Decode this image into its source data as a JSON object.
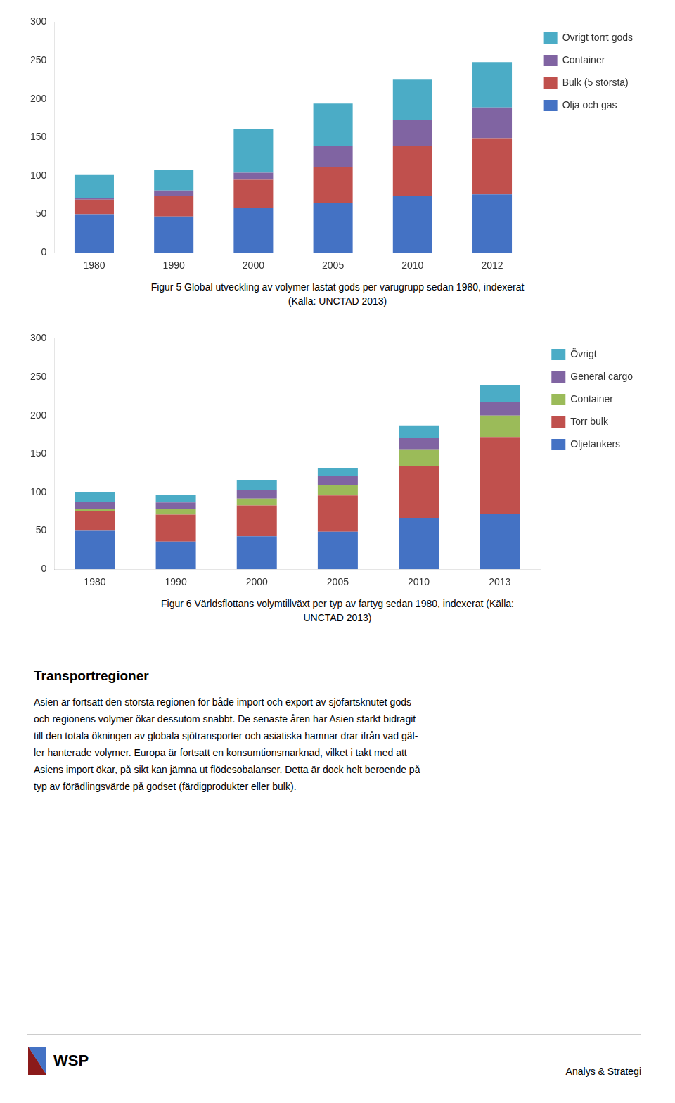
{
  "chart_data": [
    {
      "type": "bar",
      "stacked": true,
      "grid": false,
      "legend": "right",
      "categories": [
        "1980",
        "1990",
        "2000",
        "2005",
        "2010",
        "2012"
      ],
      "series": [
        {
          "name": "Olja och gas",
          "color": "#4472C4",
          "values": [
            50,
            47,
            58,
            65,
            74,
            76
          ]
        },
        {
          "name": "Bulk (5 största)",
          "color": "#C0504D",
          "values": [
            19,
            27,
            37,
            46,
            65,
            73
          ]
        },
        {
          "name": "Container",
          "color": "#8064A2",
          "values": [
            2,
            7,
            9,
            28,
            34,
            40
          ]
        },
        {
          "name": "Övrigt torrt gods",
          "color": "#4BACC6",
          "values": [
            30,
            27,
            57,
            55,
            52,
            59
          ]
        }
      ],
      "ylim": [
        0,
        300
      ],
      "yticks": [
        0,
        50,
        100,
        150,
        200,
        250,
        300
      ],
      "annotations": [
        "Figur 5 Global utveckling av volymer lastat gods per varugrupp sedan 1980, indexerat",
        "(Källa: UNCTAD 2013)"
      ]
    },
    {
      "type": "bar",
      "stacked": true,
      "grid": false,
      "legend": "right",
      "categories": [
        "1980",
        "1990",
        "2000",
        "2005",
        "2010",
        "2013"
      ],
      "series": [
        {
          "name": "Oljetankers",
          "color": "#4472C4",
          "values": [
            50,
            36,
            43,
            49,
            66,
            72
          ]
        },
        {
          "name": "Torr bulk",
          "color": "#C0504D",
          "values": [
            26,
            35,
            40,
            47,
            68,
            100
          ]
        },
        {
          "name": "Container",
          "color": "#9BBB59",
          "values": [
            3,
            7,
            9,
            13,
            22,
            28
          ]
        },
        {
          "name": "General cargo",
          "color": "#8064A2",
          "values": [
            9,
            9,
            11,
            12,
            15,
            18
          ]
        },
        {
          "name": "Övrigt",
          "color": "#4BACC6",
          "values": [
            12,
            10,
            13,
            10,
            16,
            21
          ]
        }
      ],
      "ylim": [
        0,
        300
      ],
      "yticks": [
        0,
        50,
        100,
        150,
        200,
        250,
        300
      ],
      "annotations": [
        "Figur 6 Världsflottans volymtillväxt per typ av fartyg sedan 1980, indexerat (Källa:",
        "UNCTAD 2013)"
      ]
    }
  ],
  "text_block": {
    "heading": "Transportregioner",
    "body_lines": [
      "Asien är fortsatt den största regionen för både import och export av sjöfartsknutet gods",
      "och regionens volymer ökar dessutom snabbt. De senaste åren har Asien starkt bidragit",
      "till den totala ökningen av globala sjötransporter och asiatiska hamnar drar ifrån vad gäl-",
      "ler hanterade volymer. Europa är fortsatt en konsumtionsmarknad, vilket i takt med att",
      "Asiens import ökar, på sikt kan jämna ut flödesobalanser. Detta är dock helt beroende på",
      "typ av förädlingsvärde på godset (färdigprodukter eller bulk)."
    ]
  },
  "footer": {
    "logo_text": "WSP",
    "right_text": "Analys & Strategi"
  }
}
